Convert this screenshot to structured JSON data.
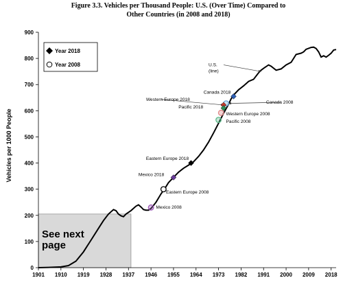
{
  "chart_data": {
    "type": "line",
    "title_lines": [
      "Figure 3.3.  Vehicles per Thousand People: U.S. (Over Time) Compared to",
      "Other Countries (in 2008 and 2018)"
    ],
    "xlabel": "",
    "ylabel": "Vehicles per 1000 People",
    "xlim": [
      1901,
      2020
    ],
    "ylim": [
      0,
      900
    ],
    "x_ticks": [
      1901,
      1910,
      1919,
      1928,
      1937,
      1946,
      1955,
      1964,
      1973,
      1982,
      1991,
      2000,
      2009,
      2018
    ],
    "y_ticks": [
      0,
      100,
      200,
      300,
      400,
      500,
      600,
      700,
      800,
      900
    ],
    "grid": false,
    "legend": {
      "position": "top-left",
      "entries": [
        {
          "label": "Year 2018",
          "marker": "diamond-filled"
        },
        {
          "label": "Year 2008",
          "marker": "circle-open"
        }
      ]
    },
    "series": [
      {
        "type": "line",
        "color": "#000000",
        "points": [
          [
            1901,
            0
          ],
          [
            1905,
            1
          ],
          [
            1910,
            3
          ],
          [
            1913,
            8
          ],
          [
            1916,
            25
          ],
          [
            1919,
            60
          ],
          [
            1922,
            105
          ],
          [
            1925,
            150
          ],
          [
            1927,
            180
          ],
          [
            1929,
            205
          ],
          [
            1931,
            222
          ],
          [
            1932,
            218
          ],
          [
            1933,
            205
          ],
          [
            1934,
            198
          ],
          [
            1935,
            195
          ],
          [
            1936,
            205
          ],
          [
            1938,
            218
          ],
          [
            1940,
            235
          ],
          [
            1941,
            240
          ],
          [
            1942,
            232
          ],
          [
            1943,
            222
          ],
          [
            1944,
            220
          ],
          [
            1945,
            220
          ],
          [
            1946,
            226
          ],
          [
            1948,
            250
          ],
          [
            1950,
            282
          ],
          [
            1952,
            310
          ],
          [
            1953,
            325
          ],
          [
            1955,
            345
          ],
          [
            1957,
            365
          ],
          [
            1959,
            380
          ],
          [
            1961,
            392
          ],
          [
            1963,
            405
          ],
          [
            1965,
            425
          ],
          [
            1967,
            450
          ],
          [
            1969,
            480
          ],
          [
            1971,
            515
          ],
          [
            1973,
            552
          ],
          [
            1975,
            590
          ],
          [
            1977,
            625
          ],
          [
            1978,
            645
          ],
          [
            1979,
            660
          ],
          [
            1981,
            680
          ],
          [
            1983,
            695
          ],
          [
            1985,
            712
          ],
          [
            1987,
            720
          ],
          [
            1989,
            745
          ],
          [
            1990,
            755
          ],
          [
            1991,
            762
          ],
          [
            1993,
            775
          ],
          [
            1994,
            770
          ],
          [
            1996,
            755
          ],
          [
            1998,
            760
          ],
          [
            2000,
            775
          ],
          [
            2002,
            785
          ],
          [
            2003,
            800
          ],
          [
            2004,
            815
          ],
          [
            2006,
            820
          ],
          [
            2007,
            825
          ],
          [
            2008,
            835
          ],
          [
            2010,
            842
          ],
          [
            2011,
            843
          ],
          [
            2012,
            838
          ],
          [
            2013,
            825
          ],
          [
            2014,
            805
          ],
          [
            2015,
            810
          ],
          [
            2016,
            805
          ],
          [
            2017,
            812
          ],
          [
            2018,
            820
          ],
          [
            2019,
            832
          ],
          [
            2020,
            834
          ]
        ]
      },
      {
        "type": "markers",
        "points": [
          {
            "label": "Canada 2018",
            "x": 1979,
            "y": 655,
            "marker": "diamond",
            "color": "#2e5fb4"
          },
          {
            "label": "Canada 2008",
            "x": 1976,
            "y": 628,
            "marker": "circle",
            "color": "#6aa8d8"
          },
          {
            "label": "Western Europe 2018",
            "x": 1975,
            "y": 622,
            "marker": "diamond",
            "color": "#c0392b"
          },
          {
            "label": "Pacific 2018",
            "x": 1975,
            "y": 610,
            "marker": "diamond",
            "color": "#2e8b57"
          },
          {
            "label": "Western Europe 2008",
            "x": 1974,
            "y": 592,
            "marker": "circle",
            "color": "#e08a8a"
          },
          {
            "label": "Pacific 2008",
            "x": 1973,
            "y": 565,
            "marker": "circle",
            "color": "#5cb88a"
          },
          {
            "label": "Eastern Europe 2018",
            "x": 1962,
            "y": 400,
            "marker": "diamond",
            "color": "#000000"
          },
          {
            "label": "Mexico 2018",
            "x": 1955,
            "y": 345,
            "marker": "diamond",
            "color": "#6a3d9a"
          },
          {
            "label": "Eastern Europe 2008",
            "x": 1951,
            "y": 300,
            "marker": "circle",
            "color": "#000000"
          },
          {
            "label": "Mexico 2008",
            "x": 1946,
            "y": 230,
            "marker": "circle",
            "color": "#9b59b6"
          }
        ]
      }
    ],
    "annotations": [
      {
        "text_lines": [
          "U.S.",
          "(line)"
        ],
        "x": 1969,
        "y": 770,
        "arrow_to": [
          1990,
          750
        ]
      },
      {
        "text_lines": [
          "Canada 2018"
        ],
        "x": 1967,
        "y": 665,
        "arrow_to": null
      },
      {
        "text_lines": [
          "Canada 2008"
        ],
        "x": 1992,
        "y": 627,
        "arrow_to": [
          1977,
          628
        ]
      },
      {
        "text_lines": [
          "Western Europe 2018"
        ],
        "x": 1944,
        "y": 638,
        "arrow_to": [
          1975,
          622
        ]
      },
      {
        "text_lines": [
          "Pacific 2018"
        ],
        "x": 1957,
        "y": 609,
        "arrow_to": null
      },
      {
        "text_lines": [
          "Western Europe 2008"
        ],
        "x": 1976,
        "y": 582,
        "arrow_to": null
      },
      {
        "text_lines": [
          "Pacific 2008"
        ],
        "x": 1976,
        "y": 553,
        "arrow_to": null
      },
      {
        "text_lines": [
          "Eastern Europe 2018"
        ],
        "x": 1944,
        "y": 412,
        "arrow_to": null
      },
      {
        "text_lines": [
          "Mexico 2018"
        ],
        "x": 1941,
        "y": 350,
        "arrow_to": null
      },
      {
        "text_lines": [
          "Eastern Europe 2008"
        ],
        "x": 1952,
        "y": 284,
        "arrow_to": null
      },
      {
        "text_lines": [
          "Mexico 2008"
        ],
        "x": 1948,
        "y": 226,
        "arrow_to": null
      }
    ],
    "shaded_region": {
      "x_range": [
        1901,
        1938
      ],
      "y_range": [
        0,
        205
      ],
      "fill": "#d9d9d9",
      "text_lines": [
        "See next",
        "page"
      ]
    }
  }
}
